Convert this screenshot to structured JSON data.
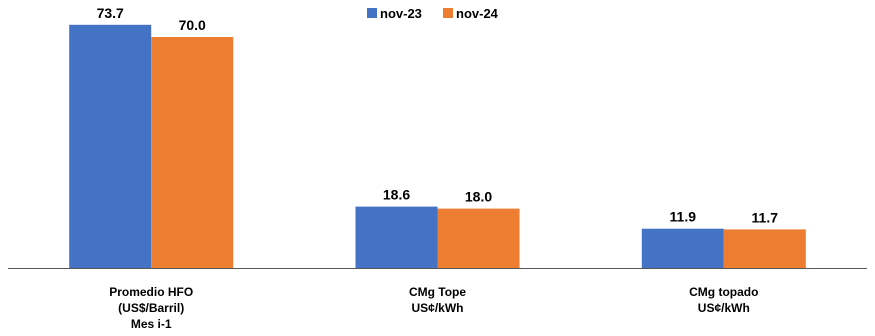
{
  "chart_data": {
    "type": "bar",
    "categories": [
      [
        "Promedio HFO",
        "(US$/Barril)",
        "Mes i-1"
      ],
      [
        "CMg Tope",
        "US¢/kWh"
      ],
      [
        "CMg topado",
        "US¢/kWh"
      ]
    ],
    "series": [
      {
        "name": "nov-23",
        "color": "#4472C4",
        "values": [
          73.7,
          18.6,
          11.9
        ],
        "labels": [
          "73.7",
          "18.6",
          "11.9"
        ]
      },
      {
        "name": "nov-24",
        "color": "#ED7D31",
        "values": [
          70.0,
          18.0,
          11.7
        ],
        "labels": [
          "70.0",
          "18.0",
          "11.7"
        ]
      }
    ],
    "ylim": [
      0,
      80
    ],
    "legend_position": "top-center",
    "grid": false,
    "axis_color": "#595959"
  }
}
